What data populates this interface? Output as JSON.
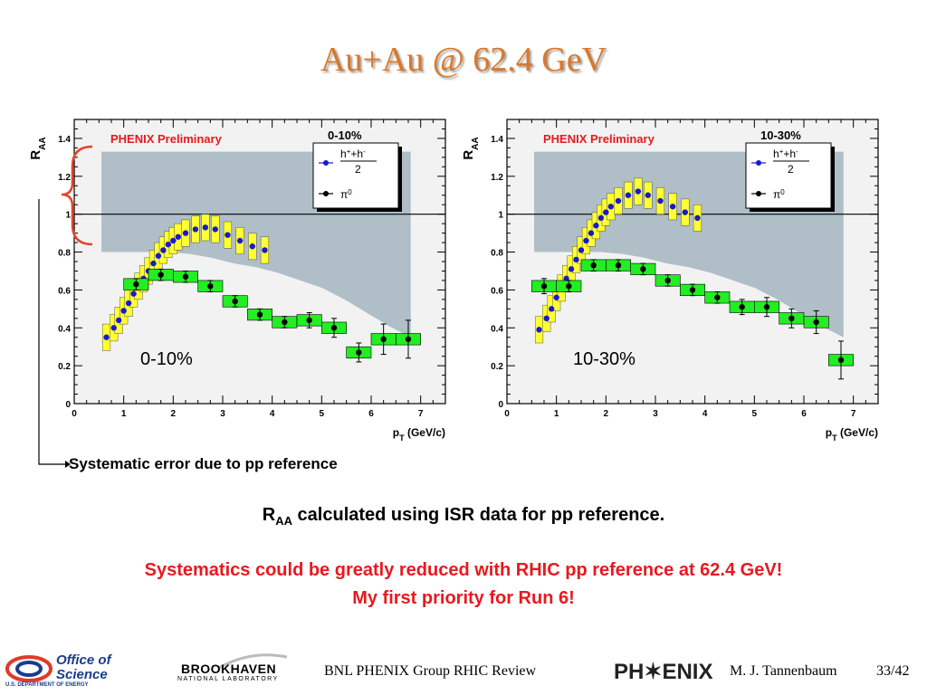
{
  "slide_title": "Au+Au @ 62.4 GeV",
  "footer": {
    "doe_line1": "Office of",
    "doe_line2": "Science",
    "doe_line3": "U.S. DEPARTMENT OF ENERGY",
    "bnl_line1": "BROOKHAVEN",
    "bnl_line2": "NATIONAL LABORATORY",
    "group": "BNL PHENIX Group  RHIC Review",
    "phenix_logo": "PH✶ENIX",
    "author": "M. J. Tannenbaum",
    "page": "33/42"
  },
  "annotations": {
    "sys_note": "Systematic error due to pp reference",
    "raa_main": "R",
    "raa_sub": "AA",
    "raa_rest": " calculated using ISR data for pp reference.",
    "red_line1": "Systematics could be greatly reduced with RHIC pp reference at 62.4 GeV!",
    "red_line2": "My first priority for Run 6!"
  },
  "colors": {
    "band": "#b0bec8",
    "yellow_box": "#ffff33",
    "green_box": "#22ee22",
    "hadron_point": "#1a1acc",
    "pi0_point": "#000000",
    "bracket": "#e0452a"
  },
  "chart_data": [
    {
      "type": "scatter",
      "title": "0-10%",
      "corner_label": "PHENIX Preliminary",
      "big_label": "0-10%",
      "ylabel": "R",
      "ylabel_sub": "AA",
      "xlabel": "p",
      "xlabel_sub": "T",
      "xlabel_unit": " (GeV/c)",
      "xlim": [
        0,
        7.5
      ],
      "ylim": [
        0,
        1.5
      ],
      "xticks": [
        0,
        1,
        2,
        3,
        4,
        5,
        6,
        7
      ],
      "yticks": [
        0,
        0.2,
        0.4,
        0.6,
        0.8,
        1,
        1.2,
        1.4
      ],
      "ytick_labels": [
        "0",
        "0.2",
        "0.4",
        "0.6",
        "0.8",
        "1",
        "1.2",
        "1.4"
      ],
      "reference_line": 1,
      "pp_band": {
        "x_start": 0.55,
        "x_end": 6.8,
        "upper": 1.33,
        "lower": [
          0.8,
          0.8,
          0.8,
          0.8,
          0.79,
          0.77,
          0.74,
          0.72,
          0.69,
          0.65,
          0.61,
          0.55,
          0.48,
          0.41,
          0.35
        ]
      },
      "legend": {
        "hadron_num": "h",
        "hadron_sup1": "+",
        "hadron_plus": "+h",
        "hadron_sup2": "-",
        "hadron_den": "2",
        "pi0": "π",
        "pi0_sup": "0"
      },
      "series": [
        {
          "name": "h",
          "x": [
            0.65,
            0.8,
            0.9,
            1.0,
            1.1,
            1.2,
            1.3,
            1.4,
            1.5,
            1.6,
            1.7,
            1.8,
            1.9,
            2.0,
            2.1,
            2.25,
            2.45,
            2.65,
            2.85,
            3.1,
            3.35,
            3.6,
            3.85
          ],
          "y": [
            0.35,
            0.4,
            0.44,
            0.49,
            0.53,
            0.58,
            0.62,
            0.66,
            0.7,
            0.74,
            0.78,
            0.81,
            0.84,
            0.86,
            0.88,
            0.9,
            0.92,
            0.93,
            0.92,
            0.89,
            0.86,
            0.83,
            0.81
          ],
          "sys": 0.07
        },
        {
          "name": "π",
          "x": [
            1.25,
            1.75,
            2.25,
            2.75,
            3.25,
            3.75,
            4.25,
            4.75,
            5.25,
            5.75,
            6.25,
            6.75
          ],
          "y": [
            0.63,
            0.68,
            0.67,
            0.62,
            0.54,
            0.47,
            0.43,
            0.44,
            0.4,
            0.27,
            0.34,
            0.34
          ],
          "err": [
            0.03,
            0.03,
            0.03,
            0.03,
            0.03,
            0.03,
            0.03,
            0.04,
            0.05,
            0.05,
            0.08,
            0.1
          ],
          "sys": 0.03
        }
      ]
    },
    {
      "type": "scatter",
      "title": "10-30%",
      "corner_label": "PHENIX Preliminary",
      "big_label": "10-30%",
      "ylabel": "R",
      "ylabel_sub": "AA",
      "xlabel": "p",
      "xlabel_sub": "T",
      "xlabel_unit": " (GeV/c)",
      "xlim": [
        0,
        7.5
      ],
      "ylim": [
        0,
        1.5
      ],
      "xticks": [
        0,
        1,
        2,
        3,
        4,
        5,
        6,
        7
      ],
      "yticks": [
        0,
        0.2,
        0.4,
        0.6,
        0.8,
        1,
        1.2,
        1.4
      ],
      "ytick_labels": [
        "0",
        "0.2",
        "0.4",
        "0.6",
        "0.8",
        "1",
        "1.2",
        "1.4"
      ],
      "reference_line": 1,
      "pp_band": {
        "x_start": 0.55,
        "x_end": 6.8,
        "upper": 1.33,
        "lower": [
          0.8,
          0.8,
          0.8,
          0.8,
          0.79,
          0.77,
          0.74,
          0.72,
          0.69,
          0.65,
          0.61,
          0.55,
          0.48,
          0.41,
          0.35
        ]
      },
      "legend": {
        "hadron_num": "h",
        "hadron_sup1": "+",
        "hadron_plus": "+h",
        "hadron_sup2": "-",
        "hadron_den": "2",
        "pi0": "π",
        "pi0_sup": "0"
      },
      "series": [
        {
          "name": "h",
          "x": [
            0.65,
            0.8,
            0.9,
            1.0,
            1.1,
            1.2,
            1.3,
            1.4,
            1.5,
            1.6,
            1.7,
            1.8,
            1.9,
            2.0,
            2.1,
            2.25,
            2.45,
            2.65,
            2.85,
            3.1,
            3.35,
            3.6,
            3.85
          ],
          "y": [
            0.39,
            0.45,
            0.5,
            0.56,
            0.61,
            0.66,
            0.71,
            0.76,
            0.81,
            0.86,
            0.9,
            0.94,
            0.98,
            1.01,
            1.04,
            1.07,
            1.1,
            1.12,
            1.1,
            1.07,
            1.04,
            1.01,
            0.98
          ],
          "sys": 0.07
        },
        {
          "name": "π",
          "x": [
            0.75,
            1.25,
            1.75,
            2.25,
            2.75,
            3.25,
            3.75,
            4.25,
            4.75,
            5.25,
            5.75,
            6.25,
            6.75
          ],
          "y": [
            0.62,
            0.62,
            0.73,
            0.73,
            0.71,
            0.65,
            0.6,
            0.56,
            0.51,
            0.51,
            0.45,
            0.43,
            0.23
          ],
          "err": [
            0.04,
            0.03,
            0.03,
            0.03,
            0.03,
            0.03,
            0.03,
            0.03,
            0.04,
            0.05,
            0.05,
            0.06,
            0.1
          ],
          "sys": 0.03
        }
      ]
    }
  ]
}
